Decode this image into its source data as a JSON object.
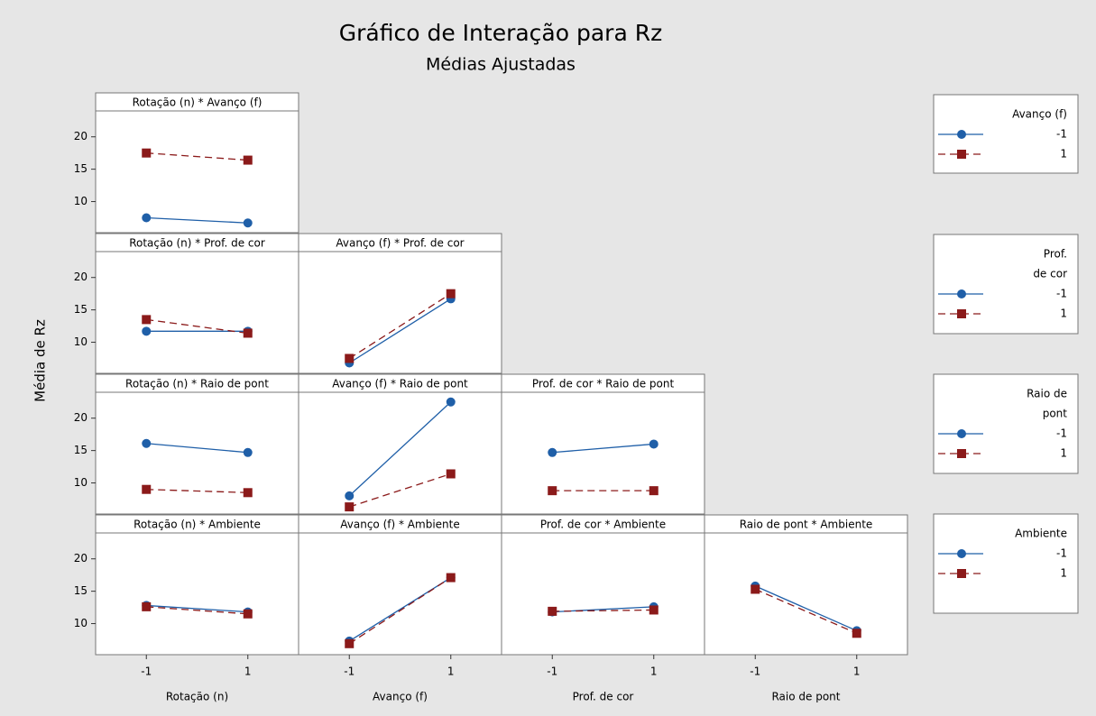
{
  "chart_data": {
    "type": "line",
    "title": "Gráfico de Interação para Rz",
    "subtitle": "Médias Ajustadas",
    "y_label": "Média de Rz",
    "x_labels": [
      "Rotação (n)",
      "Avanço (f)",
      "Prof. de cor",
      "Raio de pont"
    ],
    "x": [
      -1,
      1
    ],
    "xlim": [
      -2,
      2
    ],
    "xticks": [
      -1,
      1
    ],
    "ylim": [
      5.2,
      24
    ],
    "yticks": [
      10,
      15,
      20
    ],
    "legends": [
      {
        "title": [
          "Avanço (f)"
        ],
        "entries": [
          {
            "name": "-1",
            "color": "#1f5fa8",
            "marker": "circle",
            "dashed": false
          },
          {
            "name": "1",
            "color": "#8b1a1a",
            "marker": "square",
            "dashed": true
          }
        ]
      },
      {
        "title": [
          "Prof.",
          "de cor"
        ],
        "entries": [
          {
            "name": "-1",
            "color": "#1f5fa8",
            "marker": "circle",
            "dashed": false
          },
          {
            "name": "1",
            "color": "#8b1a1a",
            "marker": "square",
            "dashed": true
          }
        ]
      },
      {
        "title": [
          "Raio de",
          "pont"
        ],
        "entries": [
          {
            "name": "-1",
            "color": "#1f5fa8",
            "marker": "circle",
            "dashed": false
          },
          {
            "name": "1",
            "color": "#8b1a1a",
            "marker": "square",
            "dashed": true
          }
        ]
      },
      {
        "title": [
          "Ambiente"
        ],
        "entries": [
          {
            "name": "-1",
            "color": "#1f5fa8",
            "marker": "circle",
            "dashed": false
          },
          {
            "name": "1",
            "color": "#8b1a1a",
            "marker": "square",
            "dashed": true
          }
        ]
      }
    ],
    "panels": [
      {
        "title": "Rotação (n) * Avanço (f)",
        "series": [
          {
            "color": "#1f5fa8",
            "marker": "circle",
            "dashed": false,
            "values": [
              7.5,
              6.7
            ]
          },
          {
            "color": "#8b1a1a",
            "marker": "square",
            "dashed": true,
            "values": [
              17.5,
              16.4
            ]
          }
        ]
      },
      {
        "title": "Rotação (n) * Prof. de cor",
        "series": [
          {
            "color": "#1f5fa8",
            "marker": "circle",
            "dashed": false,
            "values": [
              11.7,
              11.7
            ]
          },
          {
            "color": "#8b1a1a",
            "marker": "square",
            "dashed": true,
            "values": [
              13.5,
              11.4
            ]
          }
        ]
      },
      {
        "title": "Avanço (f) * Prof. de cor",
        "series": [
          {
            "color": "#1f5fa8",
            "marker": "circle",
            "dashed": false,
            "values": [
              6.8,
              16.7
            ]
          },
          {
            "color": "#8b1a1a",
            "marker": "square",
            "dashed": true,
            "values": [
              7.5,
              17.5
            ]
          }
        ]
      },
      {
        "title": "Rotação (n) * Raio de pont",
        "series": [
          {
            "color": "#1f5fa8",
            "marker": "circle",
            "dashed": false,
            "values": [
              16.1,
              14.7
            ]
          },
          {
            "color": "#8b1a1a",
            "marker": "square",
            "dashed": true,
            "values": [
              9.0,
              8.5
            ]
          }
        ]
      },
      {
        "title": "Avanço (f) * Raio de pont",
        "series": [
          {
            "color": "#1f5fa8",
            "marker": "circle",
            "dashed": false,
            "values": [
              8.0,
              22.5
            ]
          },
          {
            "color": "#8b1a1a",
            "marker": "square",
            "dashed": true,
            "values": [
              6.3,
              11.4
            ]
          }
        ]
      },
      {
        "title": "Prof. de cor * Raio de pont",
        "series": [
          {
            "color": "#1f5fa8",
            "marker": "circle",
            "dashed": false,
            "values": [
              14.7,
              16.0
            ]
          },
          {
            "color": "#8b1a1a",
            "marker": "square",
            "dashed": true,
            "values": [
              8.8,
              8.8
            ]
          }
        ]
      },
      {
        "title": "Rotação (n) * Ambiente",
        "series": [
          {
            "color": "#1f5fa8",
            "marker": "circle",
            "dashed": false,
            "values": [
              12.8,
              11.8
            ]
          },
          {
            "color": "#8b1a1a",
            "marker": "square",
            "dashed": true,
            "values": [
              12.6,
              11.5
            ]
          }
        ]
      },
      {
        "title": "Avanço (f) * Ambiente",
        "series": [
          {
            "color": "#1f5fa8",
            "marker": "circle",
            "dashed": false,
            "values": [
              7.3,
              17.1
            ]
          },
          {
            "color": "#8b1a1a",
            "marker": "square",
            "dashed": true,
            "values": [
              6.9,
              17.1
            ]
          }
        ]
      },
      {
        "title": "Prof. de cor * Ambiente",
        "series": [
          {
            "color": "#1f5fa8",
            "marker": "circle",
            "dashed": false,
            "values": [
              11.8,
              12.6
            ]
          },
          {
            "color": "#8b1a1a",
            "marker": "square",
            "dashed": true,
            "values": [
              11.9,
              12.1
            ]
          }
        ]
      },
      {
        "title": "Raio de pont * Ambiente",
        "series": [
          {
            "color": "#1f5fa8",
            "marker": "circle",
            "dashed": false,
            "values": [
              15.8,
              8.9
            ]
          },
          {
            "color": "#8b1a1a",
            "marker": "square",
            "dashed": true,
            "values": [
              15.3,
              8.5
            ]
          }
        ]
      }
    ]
  }
}
